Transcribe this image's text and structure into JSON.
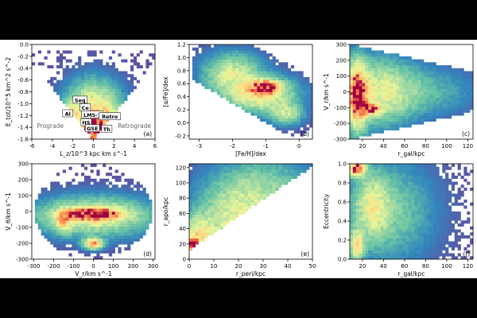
{
  "chart_data": [
    {
      "type": "heatmap",
      "panel_label": "(a)",
      "xlabel": "L_z/10^3 kpc km s^-1",
      "ylabel": "E_tot/10^5 km^2 s^-2",
      "xlim": [
        -6,
        6
      ],
      "ylim": [
        -1.6,
        0.0
      ],
      "xticks": [
        -6,
        -4,
        -2,
        0,
        2,
        4,
        6
      ],
      "yticks": [
        -1.6,
        -1.4,
        -1.2,
        -1.0,
        -0.8,
        -0.6,
        -0.4,
        -0.2,
        0.0
      ],
      "annotations": [
        "Seq",
        "Ce",
        "LMS-1",
        "Retro",
        "HS",
        "GSE",
        "Th",
        "Al",
        "Prograde",
        "Retrograde"
      ],
      "annotation_positions": [
        {
          "text": "Seq",
          "x": -1.3,
          "y": -0.94
        },
        {
          "text": "Ce",
          "x": -0.8,
          "y": -1.07
        },
        {
          "text": "LMS-1",
          "x": -0.1,
          "y": -1.19
        },
        {
          "text": "Retro",
          "x": 1.6,
          "y": -1.22
        },
        {
          "text": "HS",
          "x": -0.7,
          "y": -1.32
        },
        {
          "text": "GSE",
          "x": -0.1,
          "y": -1.42
        },
        {
          "text": "Th",
          "x": 1.3,
          "y": -1.43
        },
        {
          "text": "Al",
          "x": -2.5,
          "y": -1.17
        },
        {
          "text": "Prograde",
          "x": -4.2,
          "y": -1.38
        },
        {
          "text": "Retrograde",
          "x": 4.0,
          "y": -1.38
        }
      ],
      "density": {
        "clusters": [
          {
            "x": 0.0,
            "y": -1.45,
            "sx": 0.6,
            "sy": 0.12,
            "w": 1.0
          },
          {
            "x": 0.0,
            "y": -1.1,
            "sx": 1.5,
            "sy": 0.28,
            "w": 0.5
          },
          {
            "x": -2.0,
            "y": -1.3,
            "sx": 0.9,
            "sy": 0.18,
            "w": 0.4
          },
          {
            "x": 1.3,
            "y": -1.3,
            "sx": 0.9,
            "sy": 0.18,
            "w": 0.35
          }
        ]
      }
    },
    {
      "type": "heatmap",
      "panel_label": "(b)",
      "xlabel": "[Fe/H]/dex",
      "ylabel": "[α/Fe]/dex",
      "xlim": [
        -3.3,
        0.4
      ],
      "ylim": [
        -0.25,
        1.2
      ],
      "xticks": [
        -3,
        -2,
        -1,
        0
      ],
      "yticks": [
        -0.2,
        0.0,
        0.2,
        0.4,
        0.6,
        0.8,
        1.0,
        1.2
      ],
      "density": {
        "clusters": [
          {
            "x": -1.0,
            "y": 0.55,
            "sx": 0.25,
            "sy": 0.06,
            "w": 1.0
          },
          {
            "x": -1.2,
            "y": 0.45,
            "sx": 0.6,
            "sy": 0.15,
            "w": 0.55
          },
          {
            "x": -2.0,
            "y": 0.75,
            "sx": 0.5,
            "sy": 0.18,
            "w": 0.35
          },
          {
            "x": -0.4,
            "y": 0.15,
            "sx": 0.3,
            "sy": 0.1,
            "w": 0.3
          }
        ]
      }
    },
    {
      "type": "heatmap",
      "panel_label": "(c)",
      "xlabel": "r_gal/kpc",
      "ylabel": "V_r/km s^-1",
      "xlim": [
        8,
        125
      ],
      "ylim": [
        -300,
        300
      ],
      "xticks": [
        20,
        40,
        60,
        80,
        100,
        120
      ],
      "yticks": [
        -300,
        -200,
        -100,
        0,
        100,
        200,
        300
      ],
      "density": {
        "clusters": [
          {
            "x": 15,
            "y": -20,
            "sx": 6,
            "sy": 120,
            "w": 1.0
          },
          {
            "x": 28,
            "y": -110,
            "sx": 6,
            "sy": 25,
            "w": 0.7
          },
          {
            "x": 35,
            "y": 0,
            "sx": 20,
            "sy": 120,
            "w": 0.35
          },
          {
            "x": 70,
            "y": 0,
            "sx": 30,
            "sy": 90,
            "w": 0.12
          }
        ]
      }
    },
    {
      "type": "heatmap",
      "panel_label": "(d)",
      "xlabel": "V_r/km s^-1",
      "ylabel": "V_θ/km s^-1",
      "xlim": [
        -310,
        310
      ],
      "ylim": [
        -300,
        300
      ],
      "xticks": [
        -300,
        -200,
        -100,
        0,
        100,
        200,
        300
      ],
      "yticks": [
        -300,
        -200,
        -100,
        0,
        100,
        200,
        300
      ],
      "density": {
        "clusters": [
          {
            "x": 0,
            "y": -15,
            "sx": 90,
            "sy": 25,
            "w": 1.0
          },
          {
            "x": 0,
            "y": -200,
            "sx": 30,
            "sy": 20,
            "w": 0.75
          },
          {
            "x": -150,
            "y": -60,
            "sx": 25,
            "sy": 40,
            "w": 0.55
          },
          {
            "x": 0,
            "y": -30,
            "sx": 170,
            "sy": 70,
            "w": 0.4
          }
        ]
      }
    },
    {
      "type": "heatmap",
      "panel_label": "(e)",
      "xlabel": "r_peri/kpc",
      "ylabel": "r_apo/kpc",
      "xlim": [
        0,
        50
      ],
      "ylim": [
        0,
        125
      ],
      "xticks": [
        0,
        10,
        20,
        30,
        40,
        50
      ],
      "yticks": [
        0,
        20,
        40,
        60,
        80,
        100,
        120
      ],
      "density": {
        "clusters": [
          {
            "x": 1.5,
            "y": 20,
            "sx": 1.2,
            "sy": 5,
            "w": 1.0
          },
          {
            "x": 4,
            "y": 30,
            "sx": 4,
            "sy": 15,
            "w": 0.5
          },
          {
            "x": 20,
            "y": 50,
            "sx": 10,
            "sy": 25,
            "w": 0.35
          },
          {
            "x": 28,
            "y": 90,
            "sx": 12,
            "sy": 25,
            "w": 0.2
          }
        ]
      }
    },
    {
      "type": "heatmap",
      "panel_label": "(f)",
      "xlabel": "r_gal/kpc",
      "ylabel": "Eccentricity",
      "xlim": [
        8,
        125
      ],
      "ylim": [
        0.0,
        1.0
      ],
      "xticks": [
        20,
        40,
        60,
        80,
        100,
        120
      ],
      "yticks": [
        0.0,
        0.2,
        0.4,
        0.6,
        0.8,
        1.0
      ],
      "density": {
        "clusters": [
          {
            "x": 15,
            "y": 0.95,
            "sx": 5,
            "sy": 0.05,
            "w": 1.0
          },
          {
            "x": 15,
            "y": 0.15,
            "sx": 4,
            "sy": 0.1,
            "w": 0.55
          },
          {
            "x": 30,
            "y": 0.55,
            "sx": 10,
            "sy": 0.2,
            "w": 0.35
          },
          {
            "x": 45,
            "y": 0.5,
            "sx": 25,
            "sy": 0.3,
            "w": 0.15
          }
        ]
      }
    }
  ]
}
